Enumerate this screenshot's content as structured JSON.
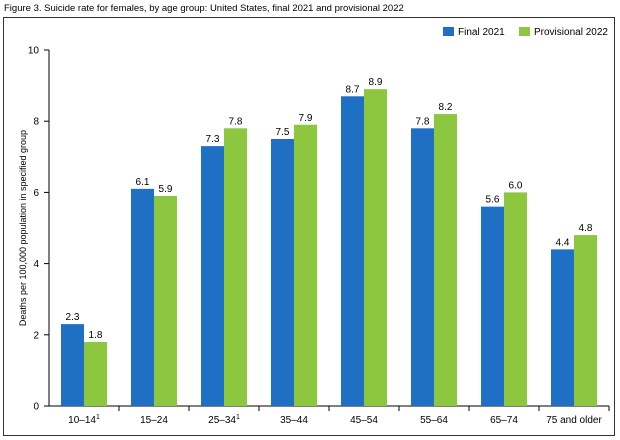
{
  "figure": {
    "title": "Figure 3. Suicide rate for females, by age group: United States, final 2021 and provisional 2022"
  },
  "colors": {
    "final": "#1f6fc5",
    "provisional": "#8dc63f",
    "axis": "#000000"
  },
  "chart_data": {
    "type": "bar",
    "title": "Figure 3. Suicide rate for females, by age group: United States, final 2021 and provisional 2022",
    "xlabel": "",
    "ylabel": "Deaths per 100,000 population in specified group",
    "ylim": [
      0,
      10
    ],
    "yticks": [
      0,
      2,
      4,
      6,
      8,
      10
    ],
    "grid": false,
    "legend_position": "top-right",
    "categories": [
      "10–14",
      "15–24",
      "25–34",
      "35–44",
      "45–54",
      "55–64",
      "65–74",
      "75 and older"
    ],
    "category_superscripts": [
      "1",
      "",
      "1",
      "",
      "",
      "",
      "",
      ""
    ],
    "series": [
      {
        "name": "Final 2021",
        "values": [
          2.3,
          6.1,
          7.3,
          7.5,
          8.7,
          7.8,
          5.6,
          4.4
        ],
        "labels": [
          "2.3",
          "6.1",
          "7.3",
          "7.5",
          "8.7",
          "7.8",
          "5.6",
          "4.4"
        ]
      },
      {
        "name": "Provisional 2022",
        "values": [
          1.8,
          5.9,
          7.8,
          7.9,
          8.9,
          8.2,
          6.0,
          4.8
        ],
        "labels": [
          "1.8",
          "5.9",
          "7.8",
          "7.9",
          "8.9",
          "8.2",
          "6.0",
          "4.8"
        ]
      }
    ]
  }
}
